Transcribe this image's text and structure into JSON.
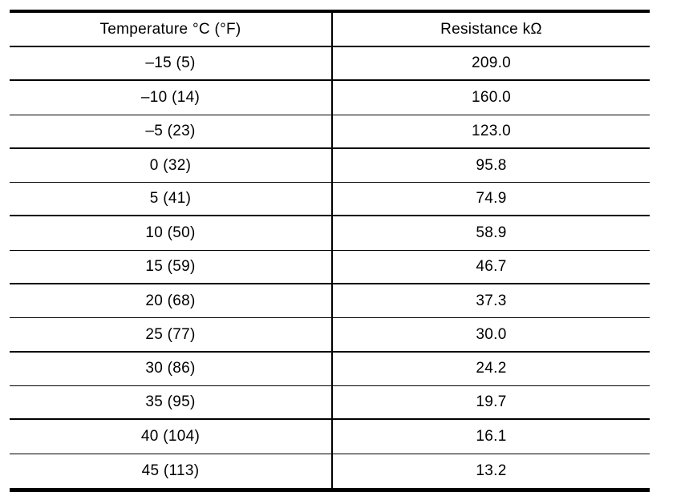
{
  "table": {
    "columns": [
      {
        "label": "Temperature °C (°F)"
      },
      {
        "label": "Resistance kΩ"
      }
    ],
    "rows": [
      {
        "temperature": "–15 (5)",
        "resistance": "209.0"
      },
      {
        "temperature": "–10 (14)",
        "resistance": "160.0"
      },
      {
        "temperature": "–5 (23)",
        "resistance": "123.0"
      },
      {
        "temperature": "0 (32)",
        "resistance": "95.8"
      },
      {
        "temperature": "5 (41)",
        "resistance": "74.9"
      },
      {
        "temperature": "10 (50)",
        "resistance": "58.9"
      },
      {
        "temperature": "15 (59)",
        "resistance": "46.7"
      },
      {
        "temperature": "20 (68)",
        "resistance": "37.3"
      },
      {
        "temperature": "25 (77)",
        "resistance": "30.0"
      },
      {
        "temperature": "30 (86)",
        "resistance": "24.2"
      },
      {
        "temperature": "35 (95)",
        "resistance": "19.7"
      },
      {
        "temperature": "40 (104)",
        "resistance": "16.1"
      },
      {
        "temperature": "45 (113)",
        "resistance": "13.2"
      }
    ]
  },
  "colors": {
    "line": "#000000",
    "background": "#ffffff",
    "text": "#000000"
  }
}
